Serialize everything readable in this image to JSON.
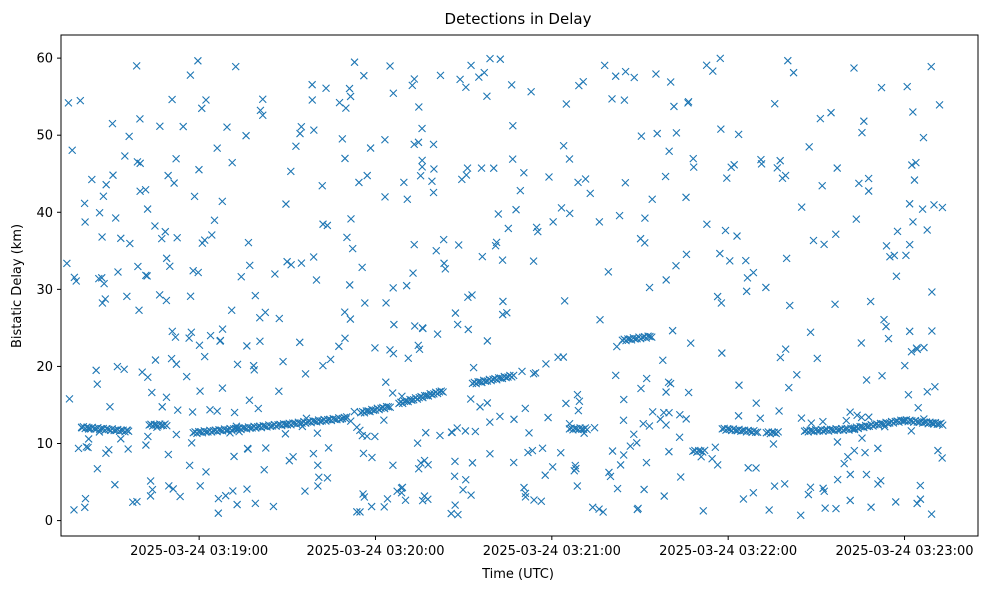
{
  "chart_data": {
    "type": "scatter",
    "title": "Detections in Delay",
    "xlabel": "Time (UTC)",
    "ylabel": "Bistatic Delay (km)",
    "x_unit": "time",
    "xlim": [
      "2025-03-24 03:18:13",
      "2025-03-24 03:23:25"
    ],
    "ylim": [
      -2,
      63
    ],
    "x_ticks": [
      "2025-03-24 03:19:00",
      "2025-03-24 03:20:00",
      "2025-03-24 03:21:00",
      "2025-03-24 03:22:00",
      "2025-03-24 03:23:00"
    ],
    "y_ticks": [
      0,
      10,
      20,
      30,
      40,
      50,
      60
    ],
    "marker": "x",
    "color": "#1f77b4",
    "grid": false,
    "legend": "none",
    "tracks": [
      {
        "start": "2025-03-24 03:18:20",
        "end": "2025-03-24 03:18:36",
        "y_start": 12.1,
        "y_end": 11.6
      },
      {
        "start": "2025-03-24 03:18:43",
        "end": "2025-03-24 03:18:49",
        "y_start": 12.4,
        "y_end": 12.4
      },
      {
        "start": "2025-03-24 03:18:58",
        "end": "2025-03-24 03:19:13",
        "y_start": 11.4,
        "y_end": 11.9
      },
      {
        "start": "2025-03-24 03:19:13",
        "end": "2025-03-24 03:19:30",
        "y_start": 11.9,
        "y_end": 12.5
      },
      {
        "start": "2025-03-24 03:19:30",
        "end": "2025-03-24 03:19:50",
        "y_start": 12.5,
        "y_end": 13.3
      },
      {
        "start": "2025-03-24 03:19:55",
        "end": "2025-03-24 03:20:05",
        "y_start": 14.0,
        "y_end": 14.8
      },
      {
        "start": "2025-03-24 03:20:08",
        "end": "2025-03-24 03:20:23",
        "y_start": 15.2,
        "y_end": 16.8
      },
      {
        "start": "2025-03-24 03:20:33",
        "end": "2025-03-24 03:20:47",
        "y_start": 17.8,
        "y_end": 18.8
      },
      {
        "start": "2025-03-24 03:21:06",
        "end": "2025-03-24 03:21:12",
        "y_start": 11.9,
        "y_end": 11.9
      },
      {
        "start": "2025-03-24 03:21:24",
        "end": "2025-03-24 03:21:34",
        "y_start": 23.4,
        "y_end": 23.9
      },
      {
        "start": "2025-03-24 03:21:48",
        "end": "2025-03-24 03:21:52",
        "y_start": 9.0,
        "y_end": 9.0
      },
      {
        "start": "2025-03-24 03:21:58",
        "end": "2025-03-24 03:22:10",
        "y_start": 11.9,
        "y_end": 11.5
      },
      {
        "start": "2025-03-24 03:22:13",
        "end": "2025-03-24 03:22:17",
        "y_start": 11.4,
        "y_end": 11.4
      },
      {
        "start": "2025-03-24 03:22:26",
        "end": "2025-03-24 03:22:43",
        "y_start": 11.6,
        "y_end": 11.9
      },
      {
        "start": "2025-03-24 03:22:43",
        "end": "2025-03-24 03:23:00",
        "y_start": 12.0,
        "y_end": 13.0
      },
      {
        "start": "2025-03-24 03:23:00",
        "end": "2025-03-24 03:23:13",
        "y_start": 13.0,
        "y_end": 12.5
      }
    ],
    "scatter_time_range": [
      "2025-03-24 03:18:15",
      "2025-03-24 03:23:13"
    ],
    "scatter_delay_range": [
      0.5,
      60
    ]
  }
}
